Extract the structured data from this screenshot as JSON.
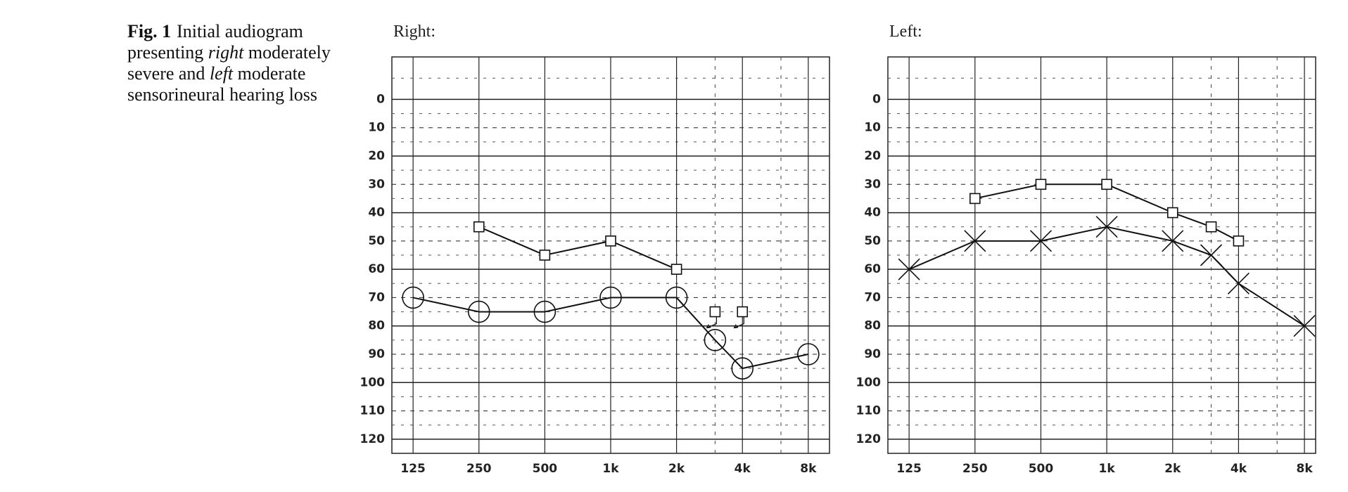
{
  "caption": {
    "label": "Fig. 1",
    "parts": [
      "Initial audiogram presenting ",
      "right",
      " moderately severe and ",
      "left",
      " moderate sensorineural hearing loss"
    ]
  },
  "chart_data": [
    {
      "type": "line",
      "title": "Right:",
      "x_log": true,
      "y_inverted": true,
      "color": "#111111",
      "xlim": [
        100,
        10000
      ],
      "ylim": [
        -15,
        125
      ],
      "xticks": [
        125,
        250,
        500,
        {
          "value": 1000,
          "label": "1k"
        },
        {
          "value": 2000,
          "label": "2k"
        },
        {
          "value": 4000,
          "label": "4k"
        },
        {
          "value": 8000,
          "label": "8k"
        }
      ],
      "x_minor_grid": [
        3000,
        6000
      ],
      "yticks": [
        0,
        10,
        20,
        30,
        40,
        50,
        60,
        70,
        80,
        90,
        100,
        110,
        120
      ],
      "series": [
        {
          "marker": "circle",
          "connect": true,
          "x": [
            125,
            250,
            500,
            1000,
            2000,
            3000,
            4000,
            8000
          ],
          "values": [
            70,
            75,
            75,
            70,
            70,
            85,
            95,
            90
          ]
        },
        {
          "marker": "square",
          "connect": true,
          "x": [
            250,
            500,
            1000,
            2000
          ],
          "values": [
            45,
            55,
            50,
            60
          ]
        },
        {
          "marker": "square-arrow",
          "connect": false,
          "x": [
            3000,
            4000
          ],
          "values": [
            75,
            75
          ]
        }
      ]
    },
    {
      "type": "line",
      "title": "Left:",
      "x_log": true,
      "y_inverted": true,
      "color": "#111111",
      "xlim": [
        100,
        9000
      ],
      "ylim": [
        -15,
        125
      ],
      "xticks": [
        125,
        250,
        500,
        {
          "value": 1000,
          "label": "1k"
        },
        {
          "value": 2000,
          "label": "2k"
        },
        {
          "value": 4000,
          "label": "4k"
        },
        {
          "value": 8000,
          "label": "8k"
        }
      ],
      "x_minor_grid": [
        3000,
        6000
      ],
      "yticks": [
        0,
        10,
        20,
        30,
        40,
        50,
        60,
        70,
        80,
        90,
        100,
        110,
        120
      ],
      "series": [
        {
          "marker": "cross",
          "connect": true,
          "x": [
            125,
            250,
            500,
            1000,
            2000,
            3000,
            4000,
            8000
          ],
          "values": [
            60,
            50,
            50,
            45,
            50,
            55,
            65,
            80
          ]
        },
        {
          "marker": "square",
          "connect": true,
          "x": [
            250,
            500,
            1000,
            2000,
            3000,
            4000
          ],
          "values": [
            35,
            30,
            30,
            40,
            45,
            50
          ]
        }
      ]
    }
  ]
}
